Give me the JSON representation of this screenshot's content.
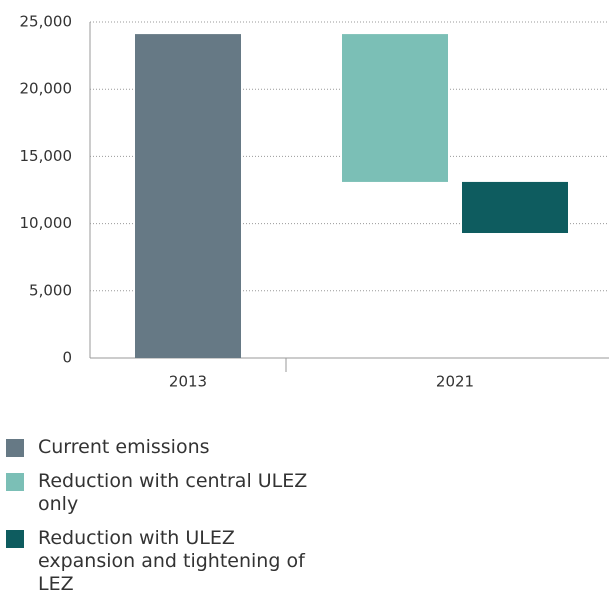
{
  "chart_data": {
    "type": "waterfall",
    "categories": [
      "2013",
      "2021"
    ],
    "series": [
      {
        "name": "Current emissions",
        "color": "#667985",
        "values": [
          24100,
          null
        ]
      },
      {
        "name": "Reduction with central ULEZ only",
        "color": "#7bbfb6",
        "values": [
          null,
          11000
        ]
      },
      {
        "name": "Reduction with ULEZ expansion and tightening of LEZ",
        "color": "#0e5c5f",
        "values": [
          null,
          3800
        ]
      }
    ],
    "ylim": [
      0,
      25000
    ],
    "yticks": [
      0,
      {
        "value": 5000,
        "label": "5,000"
      },
      {
        "value": 10000,
        "label": "10,000"
      },
      {
        "value": 15000,
        "label": "15,000"
      },
      {
        "value": 20000,
        "label": "20,000"
      },
      {
        "value": 25000,
        "label": "25,000"
      }
    ],
    "grid": true
  }
}
